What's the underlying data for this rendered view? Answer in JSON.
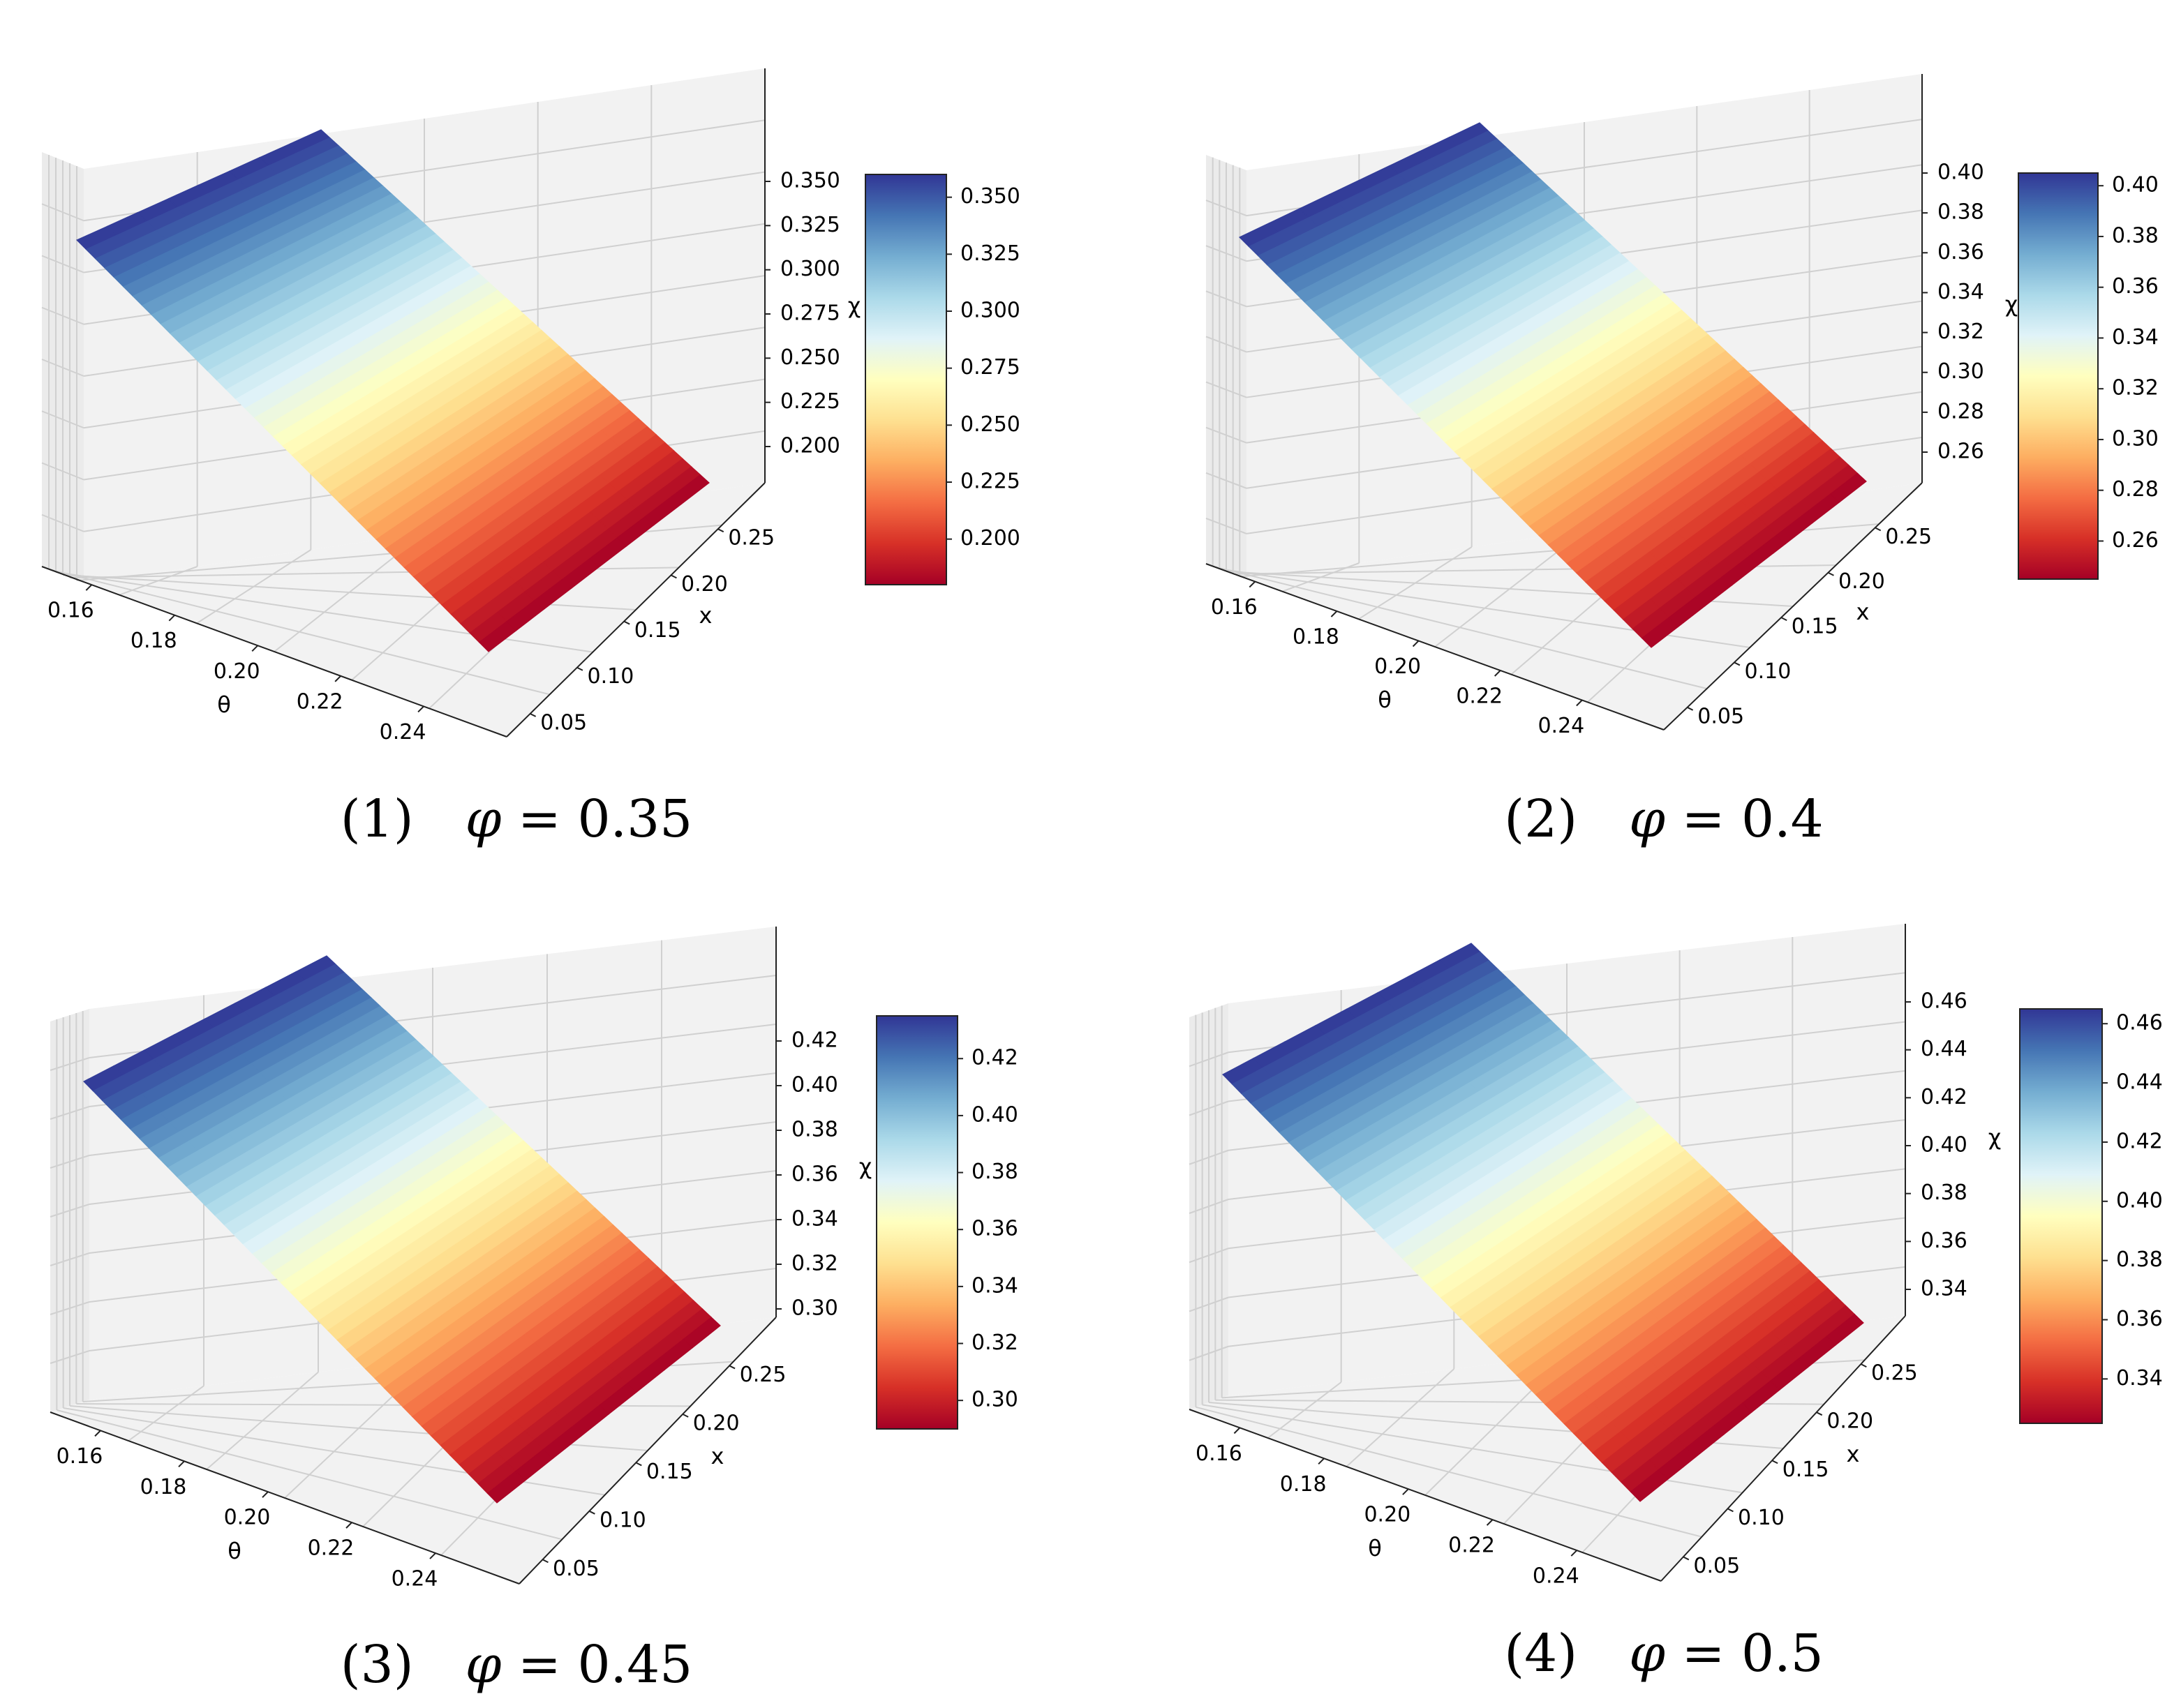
{
  "colors": {
    "colormap": [
      "#a50026",
      "#d73027",
      "#f46d43",
      "#fdae61",
      "#fee090",
      "#ffffbf",
      "#e0f3f8",
      "#abd9e9",
      "#74add1",
      "#4575b4",
      "#313695"
    ],
    "pane": "#f2f2f2",
    "pane_side": "#ebebeb",
    "grid": "#d0d0d0"
  },
  "chart_data": [
    {
      "type": "surface3d",
      "caption": {
        "number": "(1)",
        "symbol": "φ",
        "equals": "=",
        "value": "0.35"
      },
      "phi": 0.35,
      "xlabel": "θ",
      "ylabel": "x",
      "zlabel": "χ",
      "theta_range": [
        0.15,
        0.25
      ],
      "x_range": [
        0.03,
        0.28
      ],
      "z_range": [
        0.18,
        0.36
      ],
      "surface_corners": {
        "theta_min_x_max": 0.36,
        "theta_max_x_max": 0.18,
        "theta_min_x_min": 0.36,
        "theta_max_x_min": 0.18
      },
      "theta_ticks": [
        "0.16",
        "0.18",
        "0.20",
        "0.22",
        "0.24"
      ],
      "x_ticks": [
        "0.05",
        "0.10",
        "0.15",
        "0.20",
        "0.25"
      ],
      "z_ticks": [
        "0.200",
        "0.225",
        "0.250",
        "0.275",
        "0.300",
        "0.325",
        "0.350"
      ],
      "colorbar_ticks": [
        "0.200",
        "0.225",
        "0.250",
        "0.275",
        "0.300",
        "0.325",
        "0.350"
      ]
    },
    {
      "type": "surface3d",
      "caption": {
        "number": "(2)",
        "symbol": "φ",
        "equals": "=",
        "value": "0.4"
      },
      "phi": 0.4,
      "xlabel": "θ",
      "ylabel": "x",
      "zlabel": "χ",
      "theta_range": [
        0.15,
        0.25
      ],
      "x_range": [
        0.03,
        0.28
      ],
      "z_range": [
        0.245,
        0.405
      ],
      "surface_corners": {
        "theta_min_x_max": 0.405,
        "theta_max_x_max": 0.245,
        "theta_min_x_min": 0.405,
        "theta_max_x_min": 0.245
      },
      "theta_ticks": [
        "0.16",
        "0.18",
        "0.20",
        "0.22",
        "0.24"
      ],
      "x_ticks": [
        "0.05",
        "0.10",
        "0.15",
        "0.20",
        "0.25"
      ],
      "z_ticks": [
        "0.26",
        "0.28",
        "0.30",
        "0.32",
        "0.34",
        "0.36",
        "0.38",
        "0.40"
      ],
      "colorbar_ticks": [
        "0.26",
        "0.28",
        "0.30",
        "0.32",
        "0.34",
        "0.36",
        "0.38",
        "0.40"
      ]
    },
    {
      "type": "surface3d",
      "caption": {
        "number": "(3)",
        "symbol": "φ",
        "equals": "=",
        "value": "0.45"
      },
      "phi": 0.45,
      "xlabel": "θ",
      "ylabel": "x",
      "zlabel": "χ",
      "theta_range": [
        0.15,
        0.25
      ],
      "x_range": [
        0.03,
        0.28
      ],
      "z_range": [
        0.29,
        0.435
      ],
      "surface_corners": {
        "theta_min_x_max": 0.435,
        "theta_max_x_max": 0.29,
        "theta_min_x_min": 0.435,
        "theta_max_x_min": 0.29
      },
      "theta_ticks": [
        "0.16",
        "0.18",
        "0.20",
        "0.22",
        "0.24"
      ],
      "x_ticks": [
        "0.05",
        "0.10",
        "0.15",
        "0.20",
        "0.25"
      ],
      "z_ticks": [
        "0.30",
        "0.32",
        "0.34",
        "0.36",
        "0.38",
        "0.40",
        "0.42"
      ],
      "colorbar_ticks": [
        "0.30",
        "0.32",
        "0.34",
        "0.36",
        "0.38",
        "0.40",
        "0.42"
      ]
    },
    {
      "type": "surface3d",
      "caption": {
        "number": "(4)",
        "symbol": "φ",
        "equals": "=",
        "value": "0.5"
      },
      "phi": 0.5,
      "xlabel": "θ",
      "ylabel": "x",
      "zlabel": "χ",
      "theta_range": [
        0.15,
        0.25
      ],
      "x_range": [
        0.03,
        0.28
      ],
      "z_range": [
        0.325,
        0.465
      ],
      "surface_corners": {
        "theta_min_x_max": 0.465,
        "theta_max_x_max": 0.325,
        "theta_min_x_min": 0.465,
        "theta_max_x_min": 0.325
      },
      "theta_ticks": [
        "0.16",
        "0.18",
        "0.20",
        "0.22",
        "0.24"
      ],
      "x_ticks": [
        "0.05",
        "0.10",
        "0.15",
        "0.20",
        "0.25"
      ],
      "z_ticks": [
        "0.34",
        "0.36",
        "0.38",
        "0.40",
        "0.42",
        "0.44",
        "0.46"
      ],
      "colorbar_ticks": [
        "0.34",
        "0.36",
        "0.38",
        "0.40",
        "0.42",
        "0.44",
        "0.46"
      ]
    }
  ]
}
